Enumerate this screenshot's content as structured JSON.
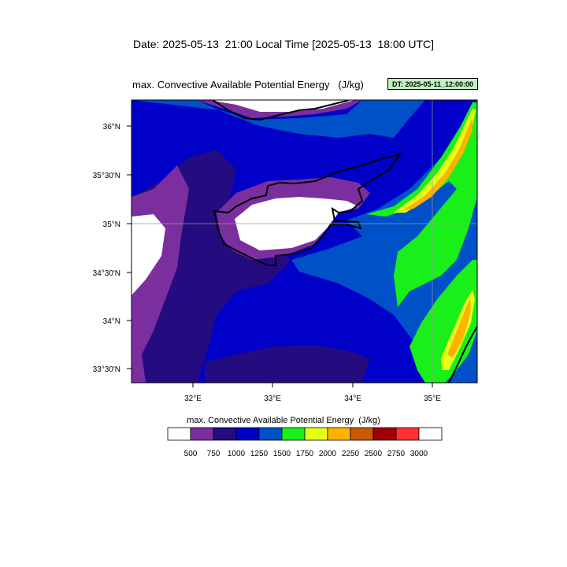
{
  "header": {
    "date_line": "Date: 2025-05-13  21:00 Local Time [2025-05-13  18:00 UTC]",
    "plot_title": "max. Convective Available Potential Energy   (J/kg)",
    "dt_label": "DT: 2025-05-11_12:00:00"
  },
  "map": {
    "variable": "max. Convective Available Potential Energy",
    "units": "J/kg",
    "lat_labels": [
      "36°N",
      "35°30'N",
      "35°N",
      "34°30'N",
      "34°N",
      "33°30'N"
    ],
    "lon_labels": [
      "32°E",
      "33°E",
      "34°E",
      "35°E"
    ]
  },
  "colorbar": {
    "title": "max. Convective Available Potential Energy  (J/kg)",
    "levels": [
      "500",
      "750",
      "1000",
      "1250",
      "1500",
      "1750",
      "2000",
      "2250",
      "2500",
      "2750",
      "3000"
    ],
    "colors": [
      "#ffffff",
      "#7b2f9e",
      "#240c80",
      "#0000c8",
      "#0050c8",
      "#19f019",
      "#e6ff19",
      "#ffb300",
      "#c85a0a",
      "#a0000a",
      "#ff3232",
      "#ffffff"
    ]
  },
  "palette": {
    "c500": "#7b2f9e",
    "c750": "#240c80",
    "c1000": "#0000c8",
    "c1250": "#0050c8",
    "c1500": "#19f019",
    "c1750": "#e6ff19",
    "c2000": "#ffb300",
    "c2250": "#c85a0a"
  }
}
